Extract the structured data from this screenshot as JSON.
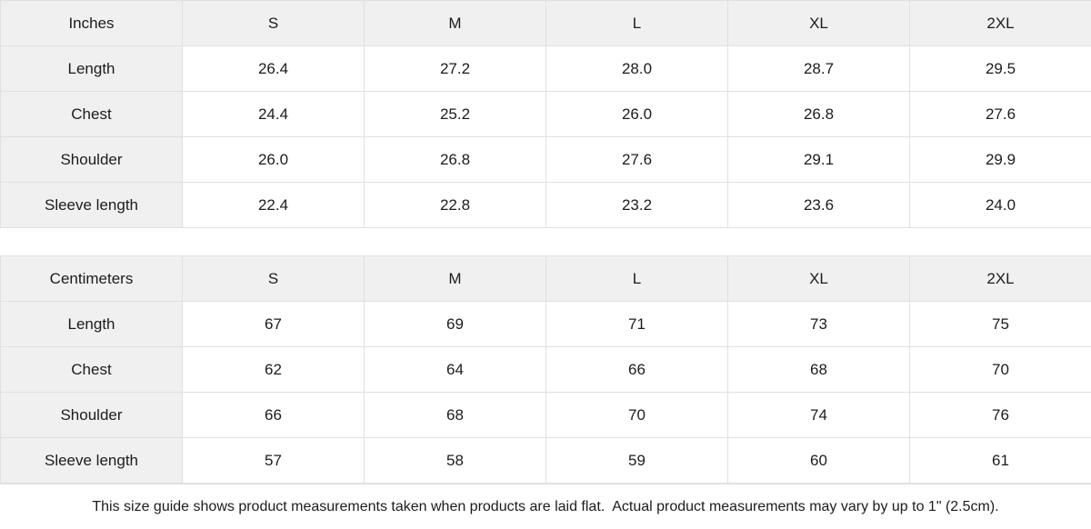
{
  "colors": {
    "header_bg": "#f0f0f1",
    "border": "#e0e0e0",
    "text": "#1c1c1c",
    "cell_bg": "#ffffff"
  },
  "tables": [
    {
      "unit_label": "Inches",
      "sizes": [
        "S",
        "M",
        "L",
        "XL",
        "2XL"
      ],
      "rows": [
        {
          "label": "Length",
          "values": [
            "26.4",
            "27.2",
            "28.0",
            "28.7",
            "29.5"
          ]
        },
        {
          "label": "Chest",
          "values": [
            "24.4",
            "25.2",
            "26.0",
            "26.8",
            "27.6"
          ]
        },
        {
          "label": "Shoulder",
          "values": [
            "26.0",
            "26.8",
            "27.6",
            "29.1",
            "29.9"
          ]
        },
        {
          "label": "Sleeve length",
          "values": [
            "22.4",
            "22.8",
            "23.2",
            "23.6",
            "24.0"
          ]
        }
      ]
    },
    {
      "unit_label": "Centimeters",
      "sizes": [
        "S",
        "M",
        "L",
        "XL",
        "2XL"
      ],
      "rows": [
        {
          "label": "Length",
          "values": [
            "67",
            "69",
            "71",
            "73",
            "75"
          ]
        },
        {
          "label": "Chest",
          "values": [
            "62",
            "64",
            "66",
            "68",
            "70"
          ]
        },
        {
          "label": "Shoulder",
          "values": [
            "66",
            "68",
            "70",
            "74",
            "76"
          ]
        },
        {
          "label": "Sleeve length",
          "values": [
            "57",
            "58",
            "59",
            "60",
            "61"
          ]
        }
      ]
    }
  ],
  "footer": {
    "note": "This size guide shows product measurements taken when products are laid flat.  Actual product measurements may vary by up to 1\" (2.5cm)."
  }
}
